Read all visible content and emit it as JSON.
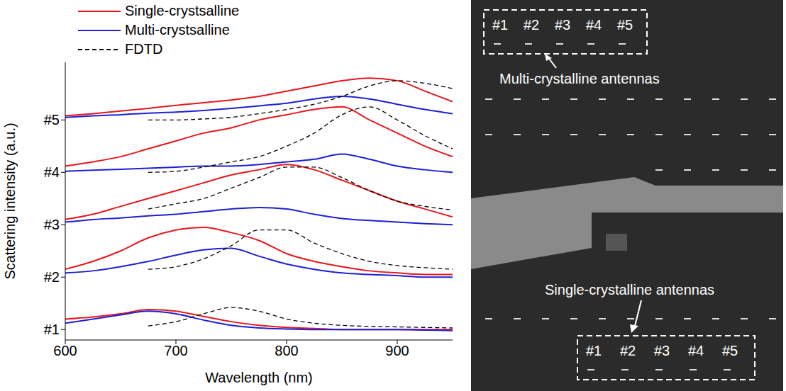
{
  "chart_data": {
    "type": "line",
    "x_label": "Wavelength (nm)",
    "y_label": "Scattering intensity (a.u.)",
    "x": [
      600,
      625,
      650,
      675,
      700,
      725,
      750,
      775,
      800,
      825,
      850,
      875,
      900,
      925,
      950
    ],
    "xlim": [
      600,
      950
    ],
    "xticks": [
      600,
      700,
      800,
      900
    ],
    "ylim": [
      0.8,
      6.1
    ],
    "yticks": [
      {
        "value": 1,
        "label": "#1"
      },
      {
        "value": 2,
        "label": "#2"
      },
      {
        "value": 3,
        "label": "#3"
      },
      {
        "value": 4,
        "label": "#4"
      },
      {
        "value": 5,
        "label": "#5"
      }
    ],
    "grid": false,
    "legend": "top-left",
    "series": [
      {
        "name": "Single-crystsalline",
        "color": "#e8161c",
        "line_style": "solid",
        "values": [
          [
            1.2,
            1.24,
            1.3,
            1.38,
            1.35,
            1.25,
            1.15,
            1.08,
            1.04,
            1.02,
            1.0,
            1.0,
            1.0,
            1.0,
            1.0
          ],
          [
            2.15,
            2.3,
            2.5,
            2.75,
            2.9,
            2.95,
            2.85,
            2.7,
            2.45,
            2.3,
            2.2,
            2.12,
            2.08,
            2.05,
            2.05
          ],
          [
            3.1,
            3.2,
            3.35,
            3.5,
            3.65,
            3.8,
            3.95,
            4.05,
            4.15,
            4.05,
            3.85,
            3.65,
            3.45,
            3.3,
            3.15
          ],
          [
            4.12,
            4.2,
            4.3,
            4.45,
            4.6,
            4.75,
            4.85,
            5.0,
            5.1,
            5.2,
            5.25,
            5.0,
            4.75,
            4.5,
            4.3
          ],
          [
            5.08,
            5.12,
            5.17,
            5.22,
            5.28,
            5.33,
            5.38,
            5.45,
            5.55,
            5.65,
            5.75,
            5.8,
            5.75,
            5.55,
            5.35
          ]
        ]
      },
      {
        "name": "Multi-crystsalline",
        "color": "#1f1fd6",
        "line_style": "solid",
        "values": [
          [
            1.12,
            1.2,
            1.28,
            1.35,
            1.3,
            1.18,
            1.08,
            1.03,
            1.01,
            1.0,
            1.0,
            1.0,
            1.0,
            0.99,
            0.98
          ],
          [
            2.08,
            2.12,
            2.2,
            2.3,
            2.42,
            2.52,
            2.55,
            2.4,
            2.25,
            2.15,
            2.08,
            2.05,
            2.03,
            2.0,
            2.0
          ],
          [
            3.05,
            3.1,
            3.13,
            3.17,
            3.2,
            3.25,
            3.3,
            3.33,
            3.3,
            3.2,
            3.12,
            3.08,
            3.05,
            3.02,
            3.0
          ],
          [
            4.02,
            4.04,
            4.06,
            4.08,
            4.1,
            4.12,
            4.12,
            4.15,
            4.2,
            4.25,
            4.35,
            4.25,
            4.12,
            4.05,
            4.0
          ],
          [
            5.05,
            5.08,
            5.1,
            5.13,
            5.15,
            5.18,
            5.22,
            5.27,
            5.32,
            5.4,
            5.45,
            5.4,
            5.3,
            5.2,
            5.12
          ]
        ]
      },
      {
        "name": "FDTD",
        "color": "#000000",
        "line_style": "dashed",
        "values": [
          [
            null,
            null,
            null,
            1.07,
            1.15,
            1.3,
            1.42,
            1.35,
            1.2,
            1.12,
            1.08,
            1.06,
            1.05,
            1.04,
            1.03
          ],
          [
            null,
            null,
            null,
            2.15,
            2.2,
            2.35,
            2.6,
            2.9,
            2.9,
            2.65,
            2.45,
            2.3,
            2.22,
            2.18,
            2.15
          ],
          [
            null,
            null,
            null,
            3.3,
            3.4,
            3.5,
            3.7,
            3.9,
            4.1,
            4.1,
            3.9,
            3.65,
            3.45,
            3.35,
            3.28
          ],
          [
            null,
            null,
            null,
            4.0,
            4.02,
            4.1,
            4.2,
            4.3,
            4.5,
            4.75,
            5.1,
            5.25,
            5.0,
            4.7,
            4.45
          ],
          [
            null,
            null,
            null,
            5.0,
            5.0,
            5.02,
            5.05,
            5.12,
            5.2,
            5.3,
            5.45,
            5.65,
            5.75,
            5.7,
            5.6
          ]
        ]
      }
    ]
  },
  "sem_image": {
    "top_box": {
      "items": [
        "#1",
        "#2",
        "#3",
        "#4",
        "#5"
      ],
      "caption": "Multi-crystalline antennas"
    },
    "bottom_box": {
      "items": [
        "#1",
        "#2",
        "#3",
        "#4",
        "#5"
      ],
      "caption": "Single-crystalline antennas"
    }
  }
}
